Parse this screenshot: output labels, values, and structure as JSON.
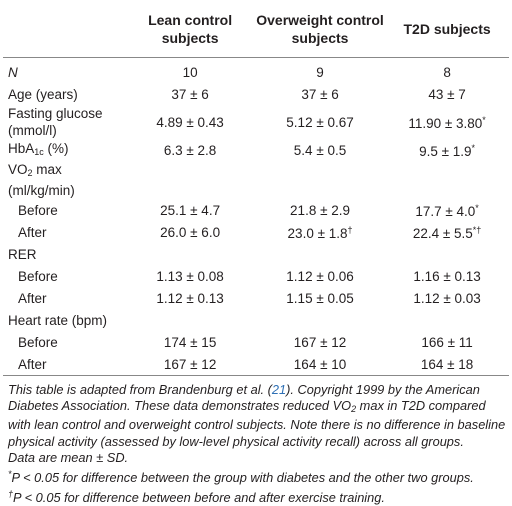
{
  "table": {
    "header": [
      "Lean control subjects",
      "Overweight control subjects",
      "T2D subjects"
    ],
    "rows": [
      {
        "label": "N",
        "values": [
          "10",
          "9",
          "8"
        ]
      },
      {
        "label": "Age (years)",
        "values": [
          "37 ± 6",
          "37 ± 6",
          "43 ± 7"
        ]
      },
      {
        "label": "Fasting glucose (mmol/l)",
        "values": [
          "4.89 ± 0.43",
          "5.12 ± 0.67",
          {
            "text": "11.90 ± 3.80",
            "mark": "*"
          }
        ]
      },
      {
        "label": "HbA",
        "label_sub": "1c",
        "label_rest": " (%)",
        "values": [
          "6.3 ± 2.8",
          "5.4 ± 0.5",
          {
            "text": "9.5 ± 1.9",
            "mark": "*"
          }
        ]
      },
      {
        "label": "VO",
        "label_sub": "2",
        "label_rest": " max (ml/kg/min)",
        "subrows": [
          {
            "label": "Before",
            "values": [
              "25.1 ± 4.7",
              "21.8 ± 2.9",
              {
                "text": "17.7 ± 4.0",
                "mark": "*"
              }
            ]
          },
          {
            "label": "After",
            "values": [
              "26.0 ± 6.0",
              {
                "text": "23.0 ± 1.8",
                "mark": "†"
              },
              {
                "text": "22.4 ± 5.5",
                "mark": "*†"
              }
            ]
          }
        ]
      },
      {
        "label": "RER",
        "subrows": [
          {
            "label": "Before",
            "values": [
              "1.13 ± 0.08",
              "1.12 ± 0.06",
              "1.16 ± 0.13"
            ]
          },
          {
            "label": "After",
            "values": [
              "1.12 ± 0.13",
              "1.15 ± 0.05",
              "1.12 ± 0.03"
            ]
          }
        ]
      },
      {
        "label": "Heart rate (bpm)",
        "subrows": [
          {
            "label": "Before",
            "values": [
              "174 ± 15",
              "167 ± 12",
              "166 ± 11"
            ]
          },
          {
            "label": "After",
            "values": [
              "167 ± 12",
              "164 ± 10",
              "164 ± 18"
            ]
          }
        ]
      }
    ],
    "note": {
      "before_ref": "This table is adapted from Brandenburg et al. (",
      "ref": "21",
      "before_sub": "). Copyright 1999 by the American Diabetes Association. These data demonstrates reduced VO",
      "sub": "2",
      "after": " max in T2D compared with lean control and overweight control subjects. Note there is no difference in baseline physical activity (assessed by low-level physical activity recall) across all groups."
    },
    "footnotes": [
      {
        "text": "Data are mean ± SD."
      },
      {
        "mark": "*",
        "text": "P < 0.05 for difference between the group with diabetes and the other two groups."
      },
      {
        "mark": "†",
        "text": "P < 0.05 for difference between before and after exercise training."
      }
    ]
  }
}
